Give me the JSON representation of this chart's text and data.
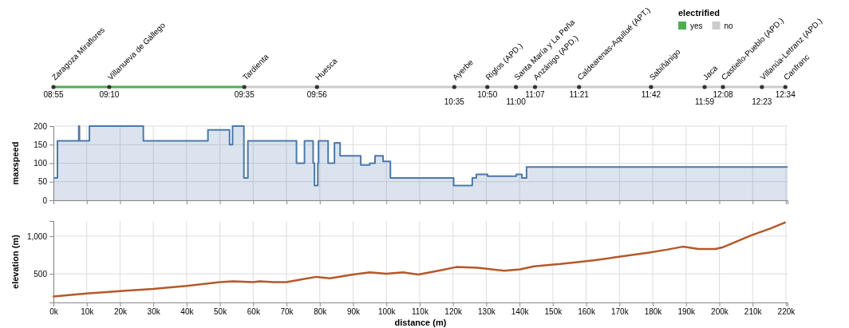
{
  "chart_data": [
    {
      "type": "other",
      "legend": "top right",
      "legend_title": "electrified",
      "series": [
        {
          "name": "yes",
          "color": "#4caf50"
        },
        {
          "name": "no",
          "color": "#cccccc"
        }
      ],
      "annotations": [
        "Zaragoza Miraflores",
        "Villanueva de Gállego",
        "Tardienta",
        "Huesca",
        "Ayerbe",
        "Riglos (APD.)",
        "Santa María y La Peña",
        "Anzánigo (APD.)",
        "Caldearenas-Aquilué (APT.)",
        "Sabiñánigo",
        "Jaca",
        "Castiello-Pueblo (APD.)",
        "Villanúa-Letranz (APD.)",
        "Canfranc",
        "08:55",
        "09:10",
        "09:35",
        "09:56",
        "10:35",
        "10:50",
        "11:00",
        "11:07",
        "11:21",
        "11:42",
        "11:59",
        "12:08",
        "12:23",
        "12:34"
      ]
    },
    {
      "type": "area",
      "ylabel": "maxspeed",
      "color": "#4c78a8",
      "grid": true,
      "tick_labels": "y",
      "xlim": [
        0,
        220500
      ],
      "xticks": [
        0,
        10000,
        20000,
        30000,
        40000,
        50000,
        60000,
        70000,
        80000,
        90000,
        100000,
        110000,
        120000,
        130000,
        140000,
        150000,
        160000,
        170000,
        180000,
        190000,
        200000,
        210000,
        220000
      ],
      "ylim": [
        0,
        200
      ],
      "yticks": [
        0,
        50,
        100,
        150,
        200
      ],
      "x": [
        0,
        1200,
        1200,
        7600,
        7600,
        7800,
        7800,
        10800,
        10800,
        27000,
        27000,
        46400,
        46400,
        52900,
        52900,
        53800,
        53800,
        57200,
        57200,
        58400,
        58400,
        73000,
        73000,
        75400,
        75400,
        78000,
        78000,
        78400,
        78400,
        79400,
        79400,
        79600,
        79600,
        82500,
        82500,
        84400,
        84400,
        86100,
        86100,
        92300,
        92300,
        95000,
        95000,
        96600,
        96600,
        99000,
        99000,
        101200,
        101200,
        120200,
        120200,
        125800,
        125800,
        127000,
        127000,
        130400,
        130400,
        139000,
        139000,
        140700,
        140700,
        142100,
        142100,
        220500
      ],
      "values": [
        60,
        60,
        160,
        160,
        200,
        200,
        160,
        160,
        200,
        200,
        160,
        160,
        190,
        190,
        150,
        150,
        200,
        200,
        60,
        60,
        160,
        160,
        100,
        100,
        160,
        160,
        100,
        100,
        40,
        40,
        100,
        100,
        160,
        160,
        100,
        100,
        155,
        155,
        120,
        120,
        95,
        95,
        100,
        100,
        120,
        120,
        105,
        105,
        60,
        60,
        40,
        40,
        60,
        60,
        70,
        70,
        65,
        65,
        70,
        70,
        60,
        60,
        90,
        90
      ]
    },
    {
      "type": "line",
      "xlabel": "distance (m)",
      "ylabel": "elevation (m)",
      "color": "#b5582a",
      "grid": true,
      "xlim": [
        0,
        220500
      ],
      "xticks": [
        {
          "value": 0,
          "label": "0k"
        },
        {
          "value": 10000,
          "label": "10k"
        },
        {
          "value": 20000,
          "label": "20k"
        },
        {
          "value": 30000,
          "label": "30k"
        },
        {
          "value": 40000,
          "label": "40k"
        },
        {
          "value": 50000,
          "label": "50k"
        },
        {
          "value": 60000,
          "label": "60k"
        },
        {
          "value": 70000,
          "label": "70k"
        },
        {
          "value": 80000,
          "label": "80k"
        },
        {
          "value": 90000,
          "label": "90k"
        },
        {
          "value": 100000,
          "label": "100k"
        },
        {
          "value": 110000,
          "label": "110k"
        },
        {
          "value": 120000,
          "label": "120k"
        },
        {
          "value": 130000,
          "label": "130k"
        },
        {
          "value": 140000,
          "label": "140k"
        },
        {
          "value": 150000,
          "label": "150k"
        },
        {
          "value": 160000,
          "label": "160k"
        },
        {
          "value": 170000,
          "label": "170k"
        },
        {
          "value": 180000,
          "label": "180k"
        },
        {
          "value": 190000,
          "label": "190k"
        },
        {
          "value": 200000,
          "label": "200k"
        },
        {
          "value": 210000,
          "label": "210k"
        },
        {
          "value": 220000,
          "label": "220k"
        }
      ],
      "ylim": [
        120,
        1200
      ],
      "yticks": [
        500,
        {
          "value": 1000,
          "label": "1,000"
        }
      ],
      "x": [
        0,
        10000,
        20000,
        30000,
        40000,
        50000,
        54000,
        60000,
        62000,
        66000,
        70000,
        75000,
        79000,
        83000,
        90000,
        95000,
        100000,
        105000,
        109600,
        115600,
        121000,
        127500,
        131600,
        135400,
        140200,
        144300,
        152200,
        156200,
        162700,
        168900,
        178500,
        184200,
        189000,
        193800,
        198800,
        200900,
        209600,
        215300,
        219700
      ],
      "values": [
        200,
        240,
        270,
        300,
        340,
        390,
        400,
        390,
        400,
        390,
        390,
        430,
        460,
        440,
        490,
        520,
        500,
        520,
        490,
        540,
        590,
        580,
        560,
        540,
        560,
        600,
        630,
        650,
        680,
        720,
        780,
        820,
        860,
        830,
        830,
        850,
        1010,
        1100,
        1180
      ]
    }
  ]
}
